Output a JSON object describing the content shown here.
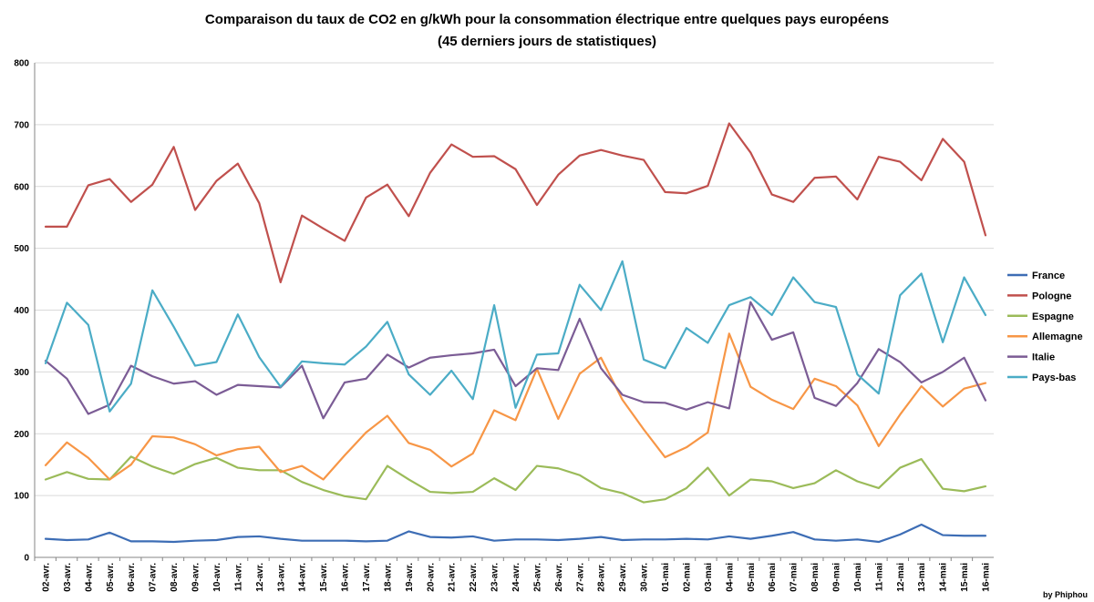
{
  "chart_data": {
    "type": "line",
    "title": [
      "Comparaison du taux de CO2 en g/kWh pour la consommation électrique entre quelques pays européens",
      "(45 derniers jours de statistiques)"
    ],
    "credit": "by Phiphou",
    "ylim": [
      0,
      800
    ],
    "yticks": [
      0,
      100,
      200,
      300,
      400,
      500,
      600,
      700,
      800
    ],
    "legend_position": "right",
    "grid": true,
    "categories": [
      "02-avr.",
      "03-avr.",
      "04-avr.",
      "05-avr.",
      "06-avr.",
      "07-avr.",
      "08-avr.",
      "09-avr.",
      "10-avr.",
      "11-avr.",
      "12-avr.",
      "13-avr.",
      "14-avr.",
      "15-avr.",
      "16-avr.",
      "17-avr.",
      "18-avr.",
      "19-avr.",
      "20-avr.",
      "21-avr.",
      "22-avr.",
      "23-avr.",
      "24-avr.",
      "25-avr.",
      "26-avr.",
      "27-avr.",
      "28-avr.",
      "29-avr.",
      "30-avr.",
      "01-mai",
      "02-mai",
      "03-mai",
      "04-mai",
      "05-mai",
      "06-mai",
      "07-mai",
      "08-mai",
      "09-mai",
      "10-mai",
      "11-mai",
      "12-mai",
      "13-mai",
      "14-mai",
      "15-mai",
      "16-mai"
    ],
    "series": [
      {
        "name": "France",
        "color": "#4472C4",
        "stroke": "#3d6db5",
        "values": [
          30,
          28,
          29,
          40,
          26,
          26,
          25,
          27,
          28,
          33,
          34,
          30,
          27,
          27,
          27,
          26,
          27,
          42,
          33,
          32,
          34,
          27,
          29,
          29,
          28,
          30,
          33,
          28,
          29,
          29,
          30,
          29,
          34,
          30,
          35,
          41,
          29,
          27,
          29,
          25,
          37,
          53,
          36,
          35,
          35
        ]
      },
      {
        "name": "Pologne",
        "color": "#C0504D",
        "values": [
          535,
          535,
          602,
          612,
          575,
          603,
          664,
          562,
          609,
          637,
          573,
          445,
          553,
          532,
          512,
          582,
          603,
          552,
          622,
          668,
          648,
          649,
          628,
          570,
          619,
          650,
          659,
          650,
          643,
          591,
          589,
          601,
          702,
          655,
          587,
          575,
          614,
          616,
          579,
          648,
          640,
          610,
          677,
          640,
          521
        ]
      },
      {
        "name": "Espagne",
        "color": "#9BBB59",
        "values": [
          126,
          138,
          127,
          126,
          163,
          147,
          135,
          151,
          161,
          145,
          141,
          141,
          122,
          109,
          99,
          94,
          148,
          126,
          106,
          104,
          106,
          128,
          109,
          148,
          144,
          133,
          112,
          104,
          89,
          94,
          112,
          145,
          100,
          126,
          123,
          112,
          120,
          141,
          123,
          112,
          145,
          159,
          111,
          107,
          115
        ]
      },
      {
        "name": "Allemagne",
        "color": "#F79646",
        "values": [
          149,
          186,
          161,
          126,
          150,
          196,
          194,
          183,
          165,
          175,
          179,
          138,
          148,
          126,
          165,
          202,
          229,
          185,
          174,
          147,
          168,
          238,
          222,
          305,
          224,
          297,
          323,
          255,
          207,
          162,
          178,
          202,
          362,
          276,
          255,
          240,
          289,
          277,
          246,
          180,
          231,
          277,
          244,
          273,
          282
        ]
      },
      {
        "name": "Italie",
        "color": "#7B5C95",
        "values": [
          318,
          289,
          232,
          247,
          310,
          293,
          281,
          285,
          263,
          279,
          277,
          275,
          310,
          225,
          283,
          289,
          328,
          307,
          323,
          327,
          330,
          336,
          277,
          306,
          303,
          386,
          306,
          263,
          251,
          250,
          239,
          251,
          241,
          413,
          352,
          364,
          258,
          245,
          282,
          337,
          316,
          283,
          300,
          323,
          254
        ]
      },
      {
        "name": "Pays-bas",
        "color": "#4BACC6",
        "values": [
          314,
          412,
          376,
          236,
          281,
          432,
          373,
          310,
          316,
          393,
          324,
          276,
          317,
          314,
          312,
          341,
          381,
          296,
          263,
          302,
          256,
          408,
          242,
          328,
          330,
          441,
          400,
          479,
          320,
          306,
          371,
          347,
          408,
          421,
          392,
          453,
          413,
          405,
          296,
          265,
          424,
          459,
          348,
          453,
          392
        ]
      }
    ]
  }
}
